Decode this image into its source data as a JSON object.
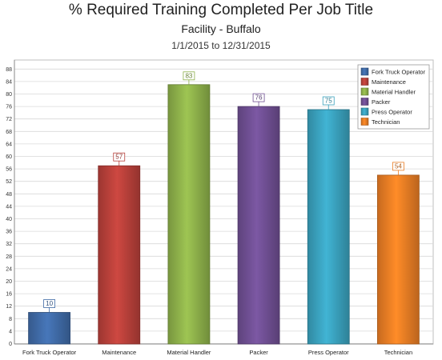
{
  "chart_data": {
    "type": "bar",
    "title": "% Required Training Completed Per Job Title",
    "subtitle": "Facility - Buffalo",
    "date_range": "1/1/2015 to 12/31/2015",
    "categories": [
      "Fork Truck Operator",
      "Maintenance",
      "Material Handler",
      "Packer",
      "Press Operator",
      "Technician"
    ],
    "values": [
      10,
      57,
      83,
      76,
      75,
      54
    ],
    "colors": [
      "#3f6aa6",
      "#b8403a",
      "#8db04a",
      "#6f4f92",
      "#3aa1bd",
      "#ea7d24"
    ],
    "ylim": [
      0,
      90
    ],
    "yticks": [
      0,
      4,
      8,
      12,
      16,
      20,
      24,
      28,
      32,
      36,
      40,
      44,
      48,
      52,
      56,
      60,
      64,
      68,
      72,
      76,
      80,
      84,
      88
    ],
    "grid": true,
    "legend_position": "top-right",
    "legend": [
      "Fork Truck Operator",
      "Maintenance",
      "Material Handler",
      "Packer",
      "Press Operator",
      "Technician"
    ]
  }
}
